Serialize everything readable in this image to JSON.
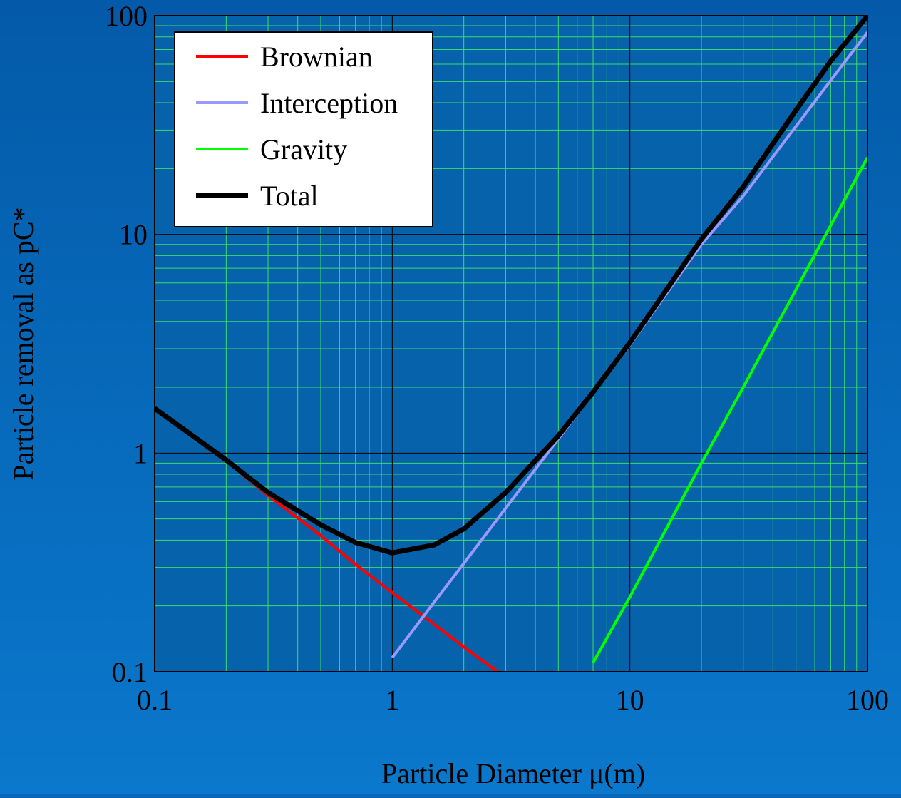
{
  "chart_data": {
    "type": "line",
    "x_label": "Particle Diameter μ(m)",
    "y_label": "Particle removal as pC*",
    "x": [
      0.1,
      0.2,
      0.3,
      0.5,
      0.7,
      1,
      1.5,
      2,
      3,
      5,
      7,
      10,
      20,
      30,
      50,
      70,
      100
    ],
    "series": [
      {
        "name": "Brownian",
        "color": "#ff0000",
        "width": 4,
        "values": [
          1.6,
          0.92,
          0.64,
          0.42,
          0.31,
          0.23,
          0.165,
          0.13,
          0.094,
          null,
          null,
          null,
          null,
          null,
          null,
          null,
          null
        ]
      },
      {
        "name": "Interception",
        "color": "#9999ff",
        "width": 4,
        "values": [
          null,
          null,
          null,
          null,
          null,
          0.116,
          0.208,
          0.313,
          0.56,
          1.16,
          1.88,
          3.12,
          9.0,
          15.0,
          31.2,
          50.6,
          84
        ]
      },
      {
        "name": "Gravity",
        "color": "#00ff00",
        "width": 4,
        "values": [
          null,
          null,
          null,
          null,
          null,
          null,
          null,
          null,
          null,
          null,
          0.11,
          0.22,
          0.9,
          2.0,
          5.6,
          11,
          22.5
        ]
      },
      {
        "name": "Total",
        "color": "#000000",
        "width": 7,
        "values": [
          1.6,
          0.93,
          0.66,
          0.47,
          0.39,
          0.35,
          0.38,
          0.45,
          0.66,
          1.2,
          1.9,
          3.2,
          9.5,
          16.5,
          37,
          62,
          100
        ]
      }
    ],
    "xlim": [
      0.1,
      100
    ],
    "ylim": [
      0.1,
      100
    ],
    "xticks": [
      0.1,
      1,
      10,
      100
    ],
    "yticks": [
      0.1,
      1,
      10,
      100
    ],
    "log_x": true,
    "log_y": true,
    "grid": true,
    "minor_grid": true,
    "legend": "upper left"
  }
}
